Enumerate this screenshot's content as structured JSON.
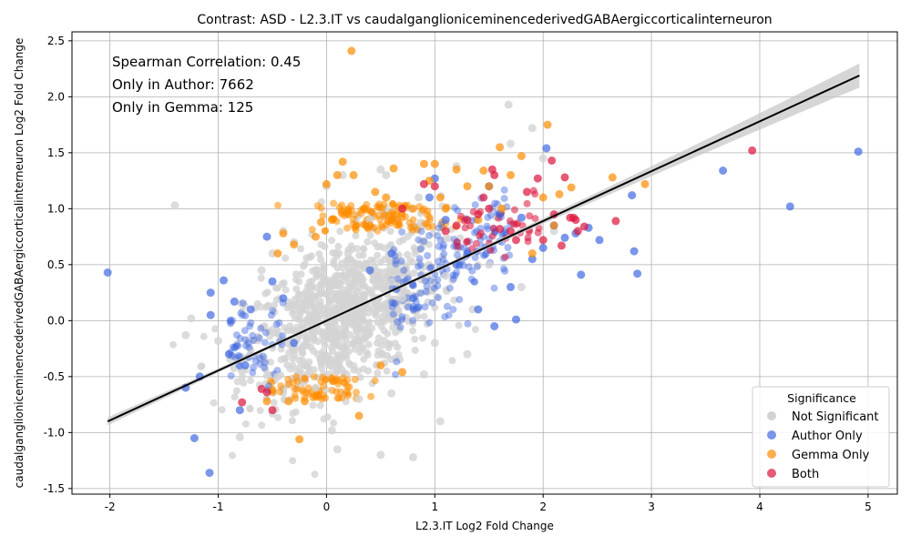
{
  "chart_data": {
    "type": "scatter",
    "title": "Contrast: ASD - L2.3.IT vs caudalganglioniceminencederivedGABAergiccorticalinterneuron",
    "xlabel": "L2.3.IT Log2 Fold Change",
    "ylabel": "caudalganglioniceminencederivedGABAergiccorticalinterneuron Log2 Fold Change",
    "xlim": [
      -2.35,
      5.27
    ],
    "ylim": [
      -1.55,
      2.58
    ],
    "xticks": [
      -2,
      -1,
      0,
      1,
      2,
      3,
      4,
      5
    ],
    "yticks": [
      -1.5,
      -1.0,
      -0.5,
      0.0,
      0.5,
      1.0,
      1.5,
      2.0,
      2.5
    ],
    "grid": true,
    "annotations": [
      "Spearman Correlation: 0.45",
      "Only in Author: 7662",
      "Only in Gemma: 125"
    ],
    "legend": {
      "title": "Significance",
      "placement": "lower-right",
      "entries": [
        "Not Significant",
        "Author Only",
        "Gemma Only",
        "Both"
      ]
    },
    "colors": {
      "Not Significant": "#d3d3d3",
      "Author Only": "#4169e1",
      "Gemma Only": "#ff8c00",
      "Both": "#dc143c",
      "regression": "#000000",
      "ci_band": "#c8c8c8"
    },
    "regression": {
      "x": [
        -2.02,
        4.92
      ],
      "y": [
        -0.9,
        2.19
      ]
    },
    "series": [
      {
        "name": "Not Significant",
        "x": [
          -1.4,
          -1.3,
          -1.25,
          -1.0,
          -0.8,
          -0.7,
          -0.6,
          -0.5,
          -0.45,
          -0.4,
          -0.3,
          -0.2,
          -0.15,
          -0.1,
          0.0,
          0.05,
          0.1,
          0.15,
          0.2,
          0.3,
          0.4,
          0.5,
          0.55,
          0.6,
          0.7,
          0.8,
          0.85,
          0.9,
          1.0,
          1.05,
          1.1,
          1.2,
          1.3,
          1.35,
          1.5,
          1.6,
          1.68,
          1.7,
          1.8,
          1.9,
          2.0,
          2.1,
          0.1,
          -0.05,
          0.6,
          0.5
        ],
        "y": [
          1.03,
          -0.13,
          0.02,
          -0.18,
          -1.04,
          -0.3,
          0.45,
          0.6,
          -0.5,
          0.8,
          0.7,
          -0.4,
          0.3,
          -0.6,
          1.2,
          -0.98,
          -1.15,
          1.3,
          0.6,
          -0.7,
          0.9,
          -1.2,
          1.3,
          -0.65,
          0.2,
          -1.22,
          1.1,
          -0.48,
          -0.2,
          -0.9,
          0.4,
          1.38,
          -0.3,
          0.1,
          0.5,
          1.0,
          1.93,
          1.58,
          0.3,
          1.72,
          1.45,
          0.8,
          0.1,
          -0.35,
          0.35,
          1.35
        ]
      },
      {
        "name": "Author Only",
        "x": [
          -2.02,
          -1.3,
          -1.22,
          -1.17,
          -1.08,
          -1.07,
          -1.07,
          -0.95,
          -0.9,
          -0.85,
          -0.8,
          -0.75,
          -0.7,
          -0.55,
          -0.5,
          -0.4,
          -0.3,
          0.4,
          0.6,
          0.8,
          0.95,
          1.0,
          1.1,
          1.2,
          1.3,
          1.4,
          1.5,
          1.55,
          1.6,
          1.7,
          1.75,
          1.8,
          1.9,
          2.0,
          2.03,
          2.1,
          2.2,
          2.3,
          2.35,
          2.42,
          2.52,
          2.82,
          2.84,
          2.87,
          3.66,
          4.28,
          4.91
        ],
        "y": [
          0.43,
          -0.6,
          -1.05,
          -0.5,
          -1.36,
          0.25,
          0.05,
          0.36,
          -0.3,
          0.17,
          -0.8,
          -0.4,
          0.1,
          0.75,
          0.35,
          0.2,
          -0.2,
          0.45,
          0.6,
          0.2,
          1.1,
          1.27,
          0.9,
          0.5,
          0.6,
          0.1,
          1.2,
          -0.05,
          0.95,
          0.3,
          0.01,
          0.92,
          0.55,
          0.65,
          1.54,
          0.85,
          0.74,
          0.78,
          0.41,
          0.83,
          0.72,
          1.12,
          0.62,
          0.42,
          1.34,
          1.02,
          1.51
        ]
      },
      {
        "name": "Gemma Only",
        "x": [
          -0.55,
          -0.5,
          -0.45,
          -0.4,
          -0.35,
          -0.3,
          -0.25,
          -0.2,
          -0.1,
          -0.05,
          0.0,
          0.05,
          0.1,
          0.15,
          0.2,
          0.23,
          0.25,
          0.3,
          0.35,
          0.4,
          0.45,
          0.5,
          0.55,
          0.6,
          0.62,
          0.7,
          0.8,
          0.9,
          0.95,
          1.0,
          1.05,
          1.1,
          1.2,
          1.3,
          1.4,
          1.45,
          1.5,
          1.6,
          1.62,
          1.7,
          1.8,
          1.9,
          2.0,
          2.04,
          2.1,
          2.15,
          2.26,
          2.64,
          2.94
        ],
        "y": [
          -0.72,
          -0.62,
          0.6,
          0.78,
          -0.72,
          0.68,
          -1.06,
          -0.72,
          0.75,
          0.88,
          1.22,
          0.9,
          1.3,
          1.42,
          0.95,
          2.41,
          1.3,
          -0.85,
          1.0,
          0.85,
          1.15,
          -0.4,
          1.1,
          0.9,
          1.36,
          -0.46,
          1.0,
          1.4,
          1.25,
          1.4,
          1.1,
          1.0,
          1.35,
          1.2,
          0.9,
          1.34,
          1.2,
          1.55,
          1.0,
          1.3,
          1.47,
          0.6,
          1.1,
          1.75,
          0.85,
          1.13,
          1.19,
          1.28,
          1.22
        ]
      },
      {
        "name": "Both",
        "x": [
          -0.78,
          -0.6,
          -0.55,
          -0.5,
          0.7,
          0.9,
          1.0,
          1.1,
          1.2,
          1.3,
          1.4,
          1.45,
          1.5,
          1.53,
          1.55,
          1.6,
          1.7,
          1.75,
          1.85,
          1.95,
          2.0,
          2.08,
          2.1,
          2.17,
          2.2,
          2.25,
          2.28,
          2.3,
          2.32,
          2.38,
          2.67,
          3.93
        ],
        "y": [
          -0.73,
          -0.61,
          -0.64,
          -0.8,
          1.0,
          1.22,
          1.2,
          0.8,
          0.85,
          0.9,
          0.95,
          1.1,
          1.0,
          1.35,
          1.3,
          0.82,
          0.8,
          0.72,
          1.15,
          1.27,
          0.72,
          1.43,
          0.95,
          0.67,
          1.28,
          0.92,
          0.92,
          0.9,
          0.8,
          0.84,
          0.89,
          1.52
        ]
      }
    ]
  }
}
